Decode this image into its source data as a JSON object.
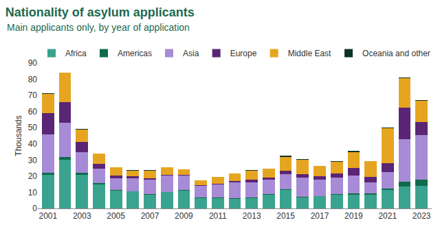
{
  "chart_data": {
    "type": "bar",
    "title": "Nationality of asylum applicants",
    "subtitle": "Main applicants only, by year of application",
    "y_label": "Thousands",
    "categories": [
      "2001",
      null,
      "2003",
      null,
      "2005",
      null,
      "2007",
      null,
      "2009",
      null,
      "2011",
      null,
      "2013",
      null,
      "2015",
      null,
      "2017",
      null,
      "2019",
      null,
      "2021",
      null,
      "2023"
    ],
    "series": [
      {
        "name": "Africa",
        "color": "#3aa38f",
        "values": [
          21,
          30,
          21,
          15,
          11,
          10.5,
          8.5,
          10,
          11,
          6.5,
          6.5,
          6,
          6.5,
          8.5,
          11.5,
          7,
          7.5,
          8.5,
          8.5,
          8.5,
          11.5,
          13.5,
          14
        ]
      },
      {
        "name": "Americas",
        "color": "#0f6b4c",
        "values": [
          1,
          2,
          1,
          0.5,
          0.3,
          0.3,
          0.3,
          0.3,
          0.3,
          0.3,
          0.3,
          0.3,
          0.3,
          0.3,
          0.3,
          0.3,
          0.3,
          0.5,
          1,
          0.7,
          1,
          3,
          4
        ]
      },
      {
        "name": "Asia",
        "color": "#a78bd6",
        "values": [
          24,
          21,
          13,
          9,
          7.5,
          8,
          9,
          10,
          9,
          7,
          8,
          10,
          9.5,
          9,
          9.5,
          12,
          10,
          10,
          11,
          7,
          10,
          26.5,
          27.5
        ]
      },
      {
        "name": "Europe",
        "color": "#5a2574",
        "values": [
          13,
          13,
          6,
          3,
          1.5,
          1,
          0.7,
          0.7,
          0.5,
          0.7,
          0.5,
          0.7,
          1.5,
          1.5,
          2,
          2,
          2,
          2.5,
          4.5,
          3.5,
          5.5,
          19.5,
          8
        ]
      },
      {
        "name": "Middle East",
        "color": "#e6a520",
        "values": [
          12,
          18,
          8,
          6.5,
          5.2,
          3.7,
          5,
          4.5,
          3.2,
          3,
          4.2,
          4.5,
          5.7,
          5.2,
          8.7,
          8.7,
          6.5,
          7.5,
          10,
          9.5,
          21.5,
          18,
          13
        ]
      },
      {
        "name": "Oceania and other",
        "color": "#0c3325",
        "values": [
          0.2,
          0.2,
          0.1,
          0.1,
          0.1,
          0.1,
          0.1,
          0.1,
          0.1,
          0.1,
          0.1,
          0.1,
          0.1,
          0.1,
          0.5,
          0.5,
          0.2,
          0.2,
          0.5,
          0.3,
          0.5,
          0.5,
          0.5
        ]
      }
    ],
    "ylim": [
      0,
      90
    ],
    "yticks": [
      0,
      10,
      20,
      30,
      40,
      50,
      60,
      70,
      80,
      90
    ],
    "stacked": true,
    "grid": false,
    "legend": "top"
  }
}
